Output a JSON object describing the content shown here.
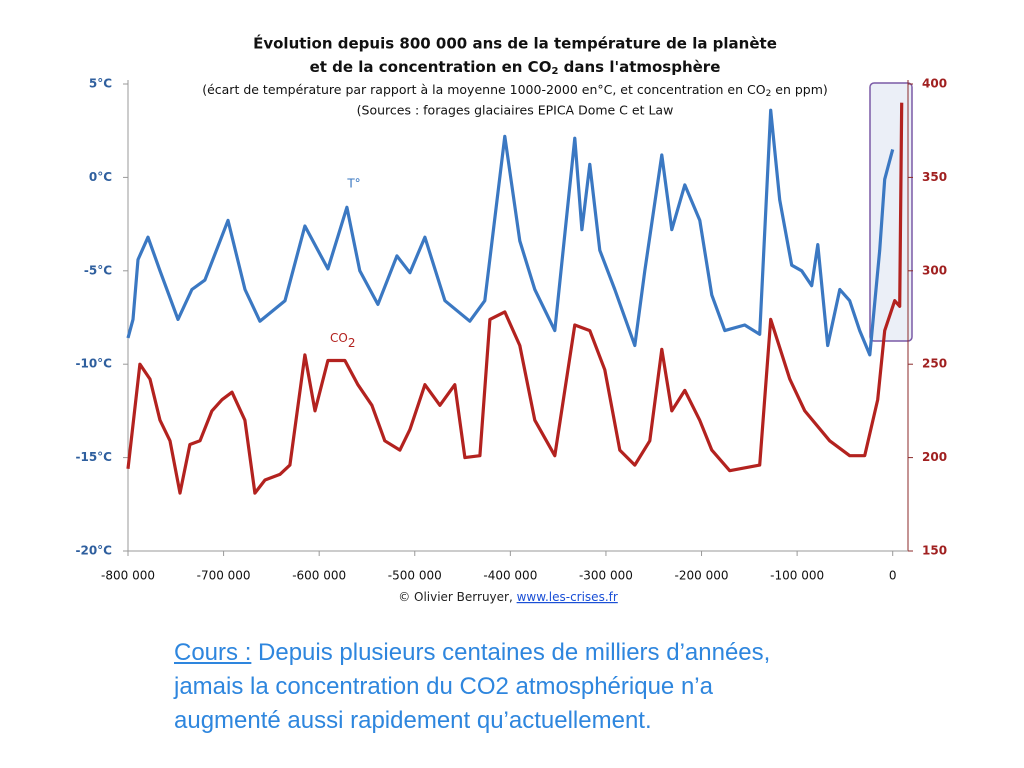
{
  "chart_data": {
    "type": "line",
    "title": [
      "Évolution depuis 800 000 ans de la température de la planète",
      [
        "et de la concentration en CO",
        "2",
        " dans l'atmosphère"
      ]
    ],
    "subtitle": [
      [
        "(écart de température par rapport à la moyenne 1000-2000 en°C, et concentration en CO",
        "2",
        " en ppm)"
      ],
      "(Sources : forages glaciaires EPICA Dome C et Law"
    ],
    "annotations": [
      "T°",
      [
        "CO",
        "2"
      ]
    ],
    "credit": [
      "© Olivier Berruyer, ",
      "www.les-crises.fr"
    ],
    "xlim": [
      -800000,
      16000
    ],
    "xticks": [
      {
        "value": -800000,
        "label": "-800 000"
      },
      {
        "value": -700000,
        "label": "-700 000"
      },
      {
        "value": -600000,
        "label": "-600 000"
      },
      {
        "value": -500000,
        "label": "-500 000"
      },
      {
        "value": -400000,
        "label": "-400 000"
      },
      {
        "value": -300000,
        "label": "-300 000"
      },
      {
        "value": -200000,
        "label": "-200 000"
      },
      {
        "value": -100000,
        "label": "-100 000"
      },
      0
    ],
    "ylim": [
      -20,
      5
    ],
    "yticks": [
      {
        "value": 5,
        "label": "5°C"
      },
      {
        "value": 0,
        "label": "0°C"
      },
      {
        "value": -5,
        "label": "-5°C"
      },
      {
        "value": -10,
        "label": "-10°C"
      },
      {
        "value": -15,
        "label": "-15°C"
      },
      {
        "value": -20,
        "label": "-20°C"
      }
    ],
    "y2lim": [
      150,
      400
    ],
    "y2ticks": [
      400,
      350,
      300,
      250,
      200,
      150
    ],
    "series": [
      {
        "name": "T°",
        "color": "#3b78c2",
        "axis": "y",
        "x": [
          -800000,
          -794800,
          -789500,
          -779100,
          -766500,
          -747700,
          -733100,
          -719500,
          -695400,
          -677600,
          -662000,
          -635800,
          -614900,
          -590900,
          -571000,
          -557500,
          -538600,
          -518700,
          -505100,
          -489400,
          -468500,
          -442400,
          -426700,
          -405800,
          -390100,
          -374400,
          -353500,
          -332600,
          -325200,
          -316900,
          -306400,
          -290700,
          -269800,
          -259400,
          -241600,
          -231100,
          -217500,
          -201800,
          -189300,
          -175700,
          -154800,
          -139100,
          -127600,
          -118200,
          -105700,
          -95200,
          -84700,
          -78400,
          -68000,
          -55400,
          -45000,
          -34500,
          -24000,
          -13600,
          -8400,
          0
        ],
        "values": [
          -8.6,
          -7.6,
          -4.4,
          -3.2,
          -5.0,
          -7.6,
          -6.0,
          -5.5,
          -2.3,
          -6.0,
          -7.7,
          -6.6,
          -2.6,
          -4.9,
          -1.6,
          -5.0,
          -6.8,
          -4.2,
          -5.1,
          -3.2,
          -6.6,
          -7.7,
          -6.6,
          2.2,
          -3.4,
          -6.0,
          -8.2,
          2.1,
          -2.8,
          0.7,
          -3.9,
          -6.0,
          -9.0,
          -5.0,
          1.2,
          -2.8,
          -0.4,
          -2.3,
          -6.3,
          -8.2,
          -7.9,
          -8.4,
          3.6,
          -1.2,
          -4.7,
          -5.0,
          -5.8,
          -3.6,
          -9.0,
          -6.0,
          -6.6,
          -8.2,
          -9.5,
          -3.9,
          -0.1,
          1.5
        ]
      },
      {
        "name": "CO2",
        "color": "#b3221f",
        "axis": "y2",
        "x": [
          -800000,
          -787500,
          -777000,
          -766500,
          -756100,
          -745600,
          -735200,
          -724700,
          -712200,
          -701700,
          -691200,
          -677700,
          -667200,
          -656700,
          -641100,
          -630600,
          -614900,
          -604400,
          -590900,
          -573100,
          -559500,
          -544800,
          -531300,
          -515600,
          -505100,
          -489400,
          -473700,
          -458100,
          -447600,
          -431900,
          -421400,
          -405800,
          -390100,
          -374400,
          -353500,
          -332600,
          -316900,
          -301200,
          -285500,
          -269800,
          -254100,
          -241600,
          -231100,
          -217500,
          -201900,
          -189300,
          -170500,
          -139100,
          -127600,
          -107700,
          -92000,
          -65900,
          -45000,
          -29300,
          -15700,
          -8400,
          2100,
          7300,
          9400
        ],
        "values": [
          194,
          250,
          242,
          220,
          209,
          181,
          207,
          209,
          225,
          231,
          235,
          220,
          181,
          188,
          191,
          196,
          255,
          225,
          252,
          252,
          239,
          228,
          209,
          204,
          215,
          239,
          228,
          239,
          200,
          201,
          274,
          278,
          260,
          220,
          201,
          271,
          268,
          247,
          204,
          196,
          209,
          258,
          225,
          236,
          220,
          204,
          193,
          196,
          274,
          242,
          225,
          209,
          201,
          201,
          231,
          268,
          284,
          281,
          390
        ]
      }
    ]
  },
  "caption": {
    "label": "Cours :",
    "lines": [
      " Depuis plusieurs centaines de milliers d’années,",
      "jamais la concentration du CO2 atmosphérique n’a",
      "augmenté aussi rapidement qu’actuellement."
    ]
  }
}
